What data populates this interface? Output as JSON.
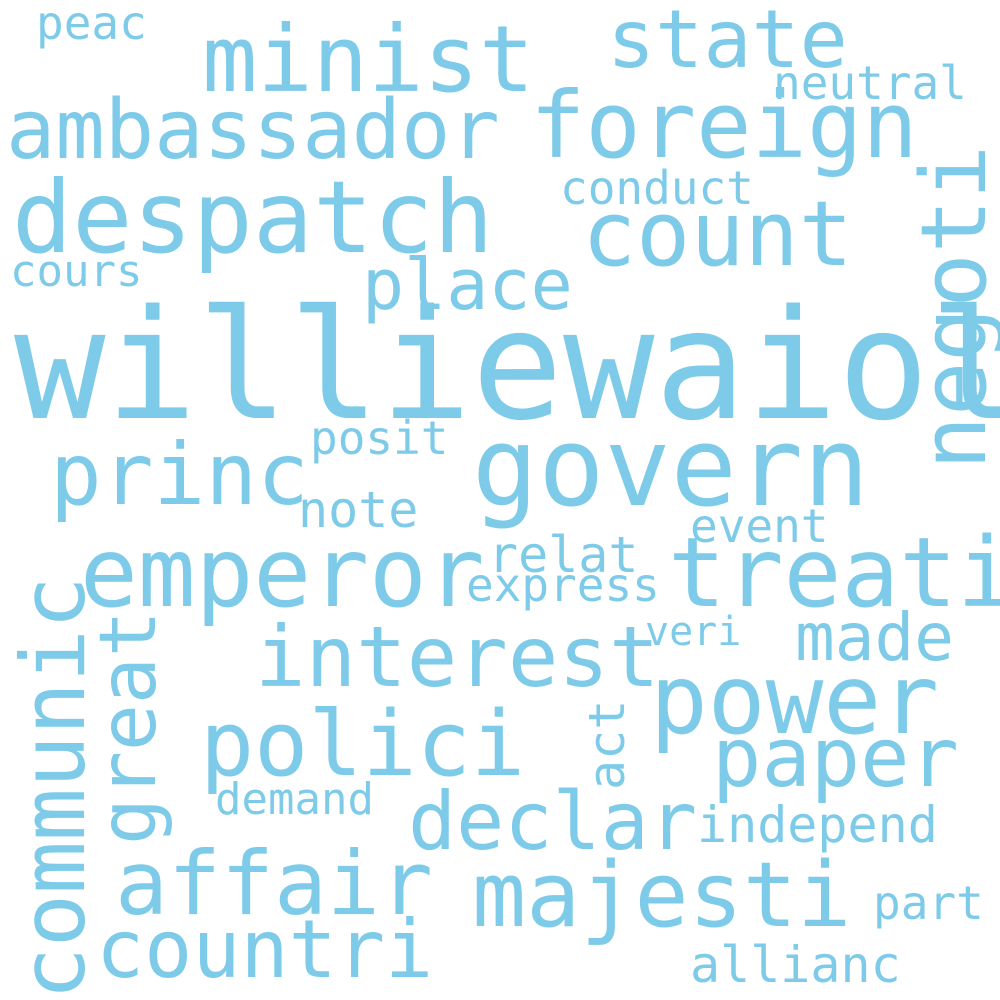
{
  "word_cloud": {
    "color": "#7ecbe9",
    "background": "#ffffff",
    "words": {
      "williewaiola": "williewaiola",
      "govern": "govern",
      "despatch": "despatch",
      "emperor": "emperor",
      "treati": "treati",
      "majesti": "majesti",
      "ambassador": "ambassador",
      "foreign": "foreign",
      "count": "count",
      "negoti": "negoti",
      "power": "power",
      "minist": "minist",
      "princ": "princ",
      "affair": "affair",
      "polici": "polici",
      "interest": "interest",
      "communic": "communic",
      "paper": "paper",
      "declar": "declar",
      "countri": "countri",
      "state": "state",
      "great": "great",
      "place": "place",
      "made": "made",
      "conduct": "conduct",
      "neutral": "neutral",
      "posit": "posit",
      "note": "note",
      "relat": "relat",
      "event": "event",
      "express": "express",
      "veri": "veri",
      "act": "act",
      "demand": "demand",
      "independ": "independ",
      "part": "part",
      "allianc": "allianc",
      "cours": "cours",
      "peac": "peac"
    }
  }
}
